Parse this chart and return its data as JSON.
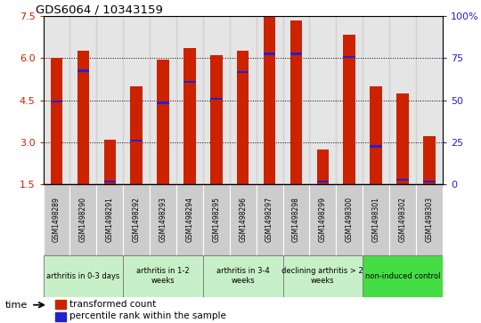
{
  "title": "GDS6064 / 10343159",
  "samples": [
    "GSM1498289",
    "GSM1498290",
    "GSM1498291",
    "GSM1498292",
    "GSM1498293",
    "GSM1498294",
    "GSM1498295",
    "GSM1498296",
    "GSM1498297",
    "GSM1498298",
    "GSM1498299",
    "GSM1498300",
    "GSM1498301",
    "GSM1498302",
    "GSM1498303"
  ],
  "bar_heights": [
    6.0,
    6.25,
    3.1,
    5.0,
    5.95,
    6.35,
    6.1,
    6.25,
    7.5,
    7.35,
    2.75,
    6.85,
    5.0,
    4.75,
    3.2
  ],
  "blue_positions": [
    4.45,
    5.55,
    1.6,
    3.05,
    4.4,
    5.15,
    4.55,
    5.5,
    6.15,
    6.15,
    1.6,
    6.05,
    2.85,
    1.65,
    1.6
  ],
  "bar_bottom": 1.5,
  "ylim_left": [
    1.5,
    7.5
  ],
  "ylim_right": [
    0,
    100
  ],
  "yticks_left": [
    1.5,
    3.0,
    4.5,
    6.0,
    7.5
  ],
  "yticks_right": [
    0,
    25,
    50,
    75,
    100
  ],
  "bar_color": "#cc2200",
  "blue_color": "#2222cc",
  "group_boundaries": [
    0,
    3,
    6,
    9,
    12,
    15
  ],
  "group_labels": [
    "arthritis in 0-3 days",
    "arthritis in 1-2\nweeks",
    "arthritis in 3-4\nweeks",
    "declining arthritis > 2\nweeks",
    "non-induced control"
  ],
  "group_colors": [
    "#c8f0c8",
    "#c8f0c8",
    "#c8f0c8",
    "#c8f0c8",
    "#44dd44"
  ],
  "legend_red": "transformed count",
  "legend_blue": "percentile rank within the sample",
  "bar_width": 0.45
}
